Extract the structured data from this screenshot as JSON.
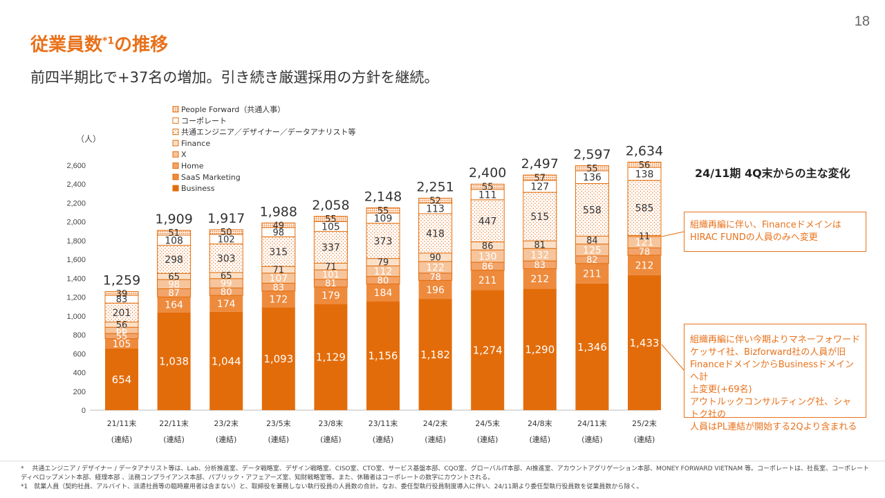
{
  "page": {
    "number": "18"
  },
  "title": {
    "main": "従業員数",
    "sup": "*1",
    "suffix": "の推移"
  },
  "subtitle": "前四半期比で+37名の増加。引き続き厳選採用の方針を継続。",
  "unit_label": "（人）",
  "right_panel": {
    "title": "24/11期 4Q末からの主な変化",
    "note1": [
      "組織再編に伴い、Financeドメインは",
      "HIRAC FUNDの人員のみへ変更"
    ],
    "note2": [
      "組織再編に伴い今期よりマネーフォワード",
      "ケッサイ社、Bizforward社の人員が旧",
      "FinanceドメインからBusinessドメインへ計",
      "上変更(+69名)",
      "アウトルックコンサルティング社、シャトク社の",
      "人員はPL連結が開始する2Qより含まれる"
    ]
  },
  "footnotes": [
    "*　 共通エンジニア / デザイナー / データアナリスト等は、Lab、分析推進室、データ戦略室、デザイン戦略室、CISO室、CTO室、サービス基盤本部、CQO室、グローバルIT本部、AI推進室、アカウントアグリゲーション本部、MONEY FORWARD VIETNAM 等。コーポレートは、社長室、コーポレート",
    "ディベロップメント本部、経理本部 、法務コンプライアンス本部、パブリック・アフェアーズ室、知財戦略室等。また、休職者はコーポレートの数字にカウントされる。",
    "*1　就業人員（契約社員、アルバイト、派遣社員等の臨時雇用者は含まない）と、取締役を兼務しない執行役員の人員数の合計。なお、委任型執行役員制度導入に伴い、24/11期より委任型執行役員数を従業員数から除く。"
  ],
  "colors": {
    "accent": "#E8711A",
    "business": "#E36C0A",
    "saas": "#EE8A3C",
    "home": "#F2A46A",
    "x": "#F7C59C",
    "finance": "#FBE0C8",
    "common": "#FFFFFF",
    "corporate": "#FFFFFF",
    "people": "#FDEBDD"
  },
  "chart_data": {
    "type": "bar",
    "stacked": true,
    "categories": [
      "21/11末",
      "22/11末",
      "23/2末",
      "23/5末",
      "23/8末",
      "23/11末",
      "24/2末",
      "24/5末",
      "24/8末",
      "24/11末",
      "25/2末"
    ],
    "category_sublabel": "(連結)",
    "ylim": [
      0,
      2600
    ],
    "yticks": [
      0,
      200,
      400,
      600,
      800,
      1000,
      1200,
      1400,
      1600,
      1800,
      2000,
      2200,
      2400,
      2600
    ],
    "ytick_labels": [
      "0",
      "200",
      "400",
      "600",
      "800",
      "1,000",
      "1,200",
      "1,400",
      "1,600",
      "1,800",
      "2,000",
      "2,200",
      "2,400",
      "2,600"
    ],
    "totals": [
      "1,259",
      "1,909",
      "1,917",
      "1,988",
      "2,058",
      "2,148",
      "2,251",
      "2,400",
      "2,497",
      "2,597",
      "2,634"
    ],
    "series": [
      {
        "name": "Business",
        "values": [
          654,
          1038,
          1044,
          1093,
          1129,
          1156,
          1182,
          1274,
          1290,
          1346,
          1433
        ]
      },
      {
        "name": "SaaS Marketing",
        "values": [
          105,
          164,
          174,
          172,
          179,
          184,
          196,
          211,
          212,
          211,
          212
        ]
      },
      {
        "name": "Home",
        "values": [
          55,
          87,
          80,
          83,
          81,
          80,
          78,
          86,
          83,
          82,
          78
        ]
      },
      {
        "name": "X",
        "values": [
          66,
          98,
          99,
          107,
          101,
          112,
          122,
          130,
          132,
          125,
          121
        ]
      },
      {
        "name": "Finance",
        "values": [
          56,
          65,
          65,
          71,
          71,
          79,
          90,
          86,
          81,
          84,
          11
        ]
      },
      {
        "name": "共通エンジニア／デザイナー／データアナリスト等",
        "values": [
          201,
          298,
          303,
          315,
          337,
          373,
          418,
          447,
          515,
          558,
          585
        ]
      },
      {
        "name": "コーポレート",
        "values": [
          83,
          108,
          102,
          98,
          105,
          109,
          113,
          111,
          127,
          136,
          138
        ]
      },
      {
        "name": "People Forward（共通人事）",
        "values": [
          39,
          51,
          50,
          49,
          55,
          55,
          52,
          55,
          57,
          55,
          56
        ]
      }
    ],
    "legend": [
      "People Forward（共通人事）",
      "コーポレート",
      "共通エンジニア／デザイナー／データアナリスト等",
      "Finance",
      "X",
      "Home",
      "SaaS Marketing",
      "Business"
    ],
    "legend_position": "top-left"
  }
}
